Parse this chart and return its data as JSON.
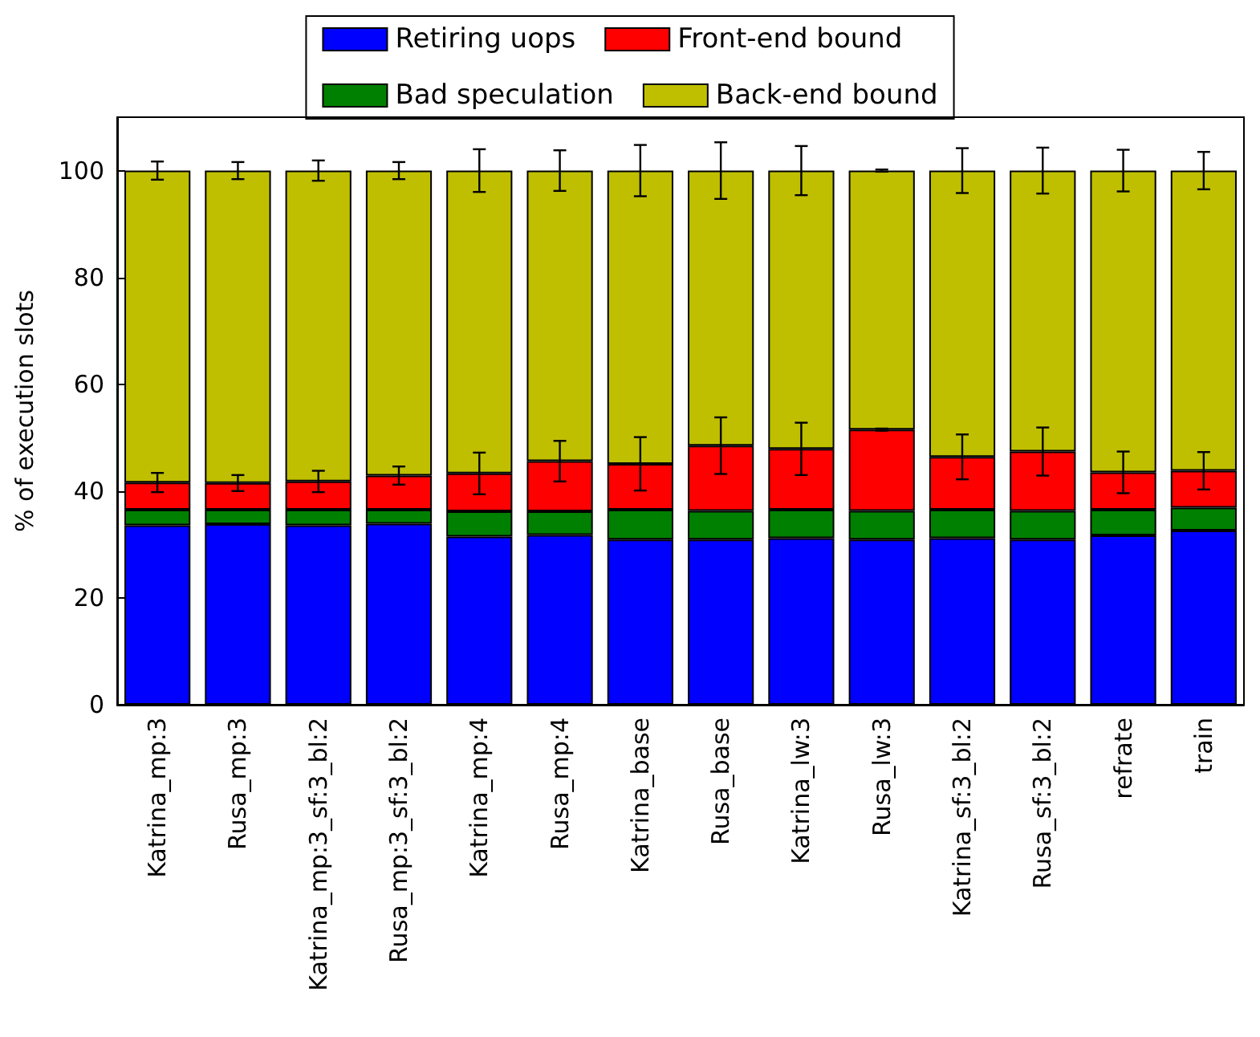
{
  "chart_data": {
    "type": "bar",
    "stacked": true,
    "ylabel": "% of execution slots",
    "categories": [
      "Katrina_mp:3",
      "Rusa_mp:3",
      "Katrina_mp:3_sf:3_bl:2",
      "Rusa_mp:3_sf:3_bl:2",
      "Katrina_mp:4",
      "Rusa_mp:4",
      "Katrina_base",
      "Rusa_base",
      "Katrina_lw:3",
      "Rusa_lw:3",
      "Katrina_sf:3_bl:2",
      "Rusa_sf:3_bl:2",
      "refrate",
      "train"
    ],
    "series": [
      {
        "name": "Retiring uops",
        "color": "#0000ff",
        "values": [
          33.6,
          33.8,
          33.6,
          33.9,
          31.5,
          31.8,
          30.9,
          30.9,
          31.2,
          30.9,
          31.2,
          30.9,
          31.7,
          32.6
        ]
      },
      {
        "name": "Bad speculation",
        "color": "#008000",
        "values": [
          2.9,
          2.7,
          2.9,
          2.6,
          4.7,
          4.4,
          5.6,
          5.4,
          5.3,
          5.4,
          5.3,
          5.4,
          4.8,
          4.3
        ]
      },
      {
        "name": "Front-end bound",
        "color": "#ff0000",
        "values": [
          5.1,
          5.0,
          5.3,
          6.4,
          7.1,
          9.4,
          8.6,
          12.2,
          11.4,
          15.2,
          9.9,
          11.1,
          7.0,
          6.9
        ],
        "errors": [
          1.8,
          1.5,
          2.0,
          1.7,
          3.9,
          3.8,
          5.0,
          5.3,
          4.9,
          0.2,
          4.2,
          4.5,
          3.9,
          3.5
        ]
      },
      {
        "name": "Back-end bound",
        "color": "#bfbf00",
        "values": [
          58.4,
          58.5,
          58.2,
          57.1,
          56.7,
          54.4,
          54.9,
          51.5,
          52.1,
          48.5,
          53.6,
          52.6,
          56.5,
          56.2
        ],
        "errors": [
          1.7,
          1.6,
          1.9,
          1.6,
          4.0,
          3.8,
          4.8,
          5.3,
          4.6,
          0.2,
          4.2,
          4.3,
          3.9,
          3.5
        ]
      }
    ],
    "ylim": [
      0,
      110
    ],
    "yticks": [
      0,
      20,
      40,
      60,
      80,
      100
    ],
    "grid": false,
    "legend": "top"
  }
}
